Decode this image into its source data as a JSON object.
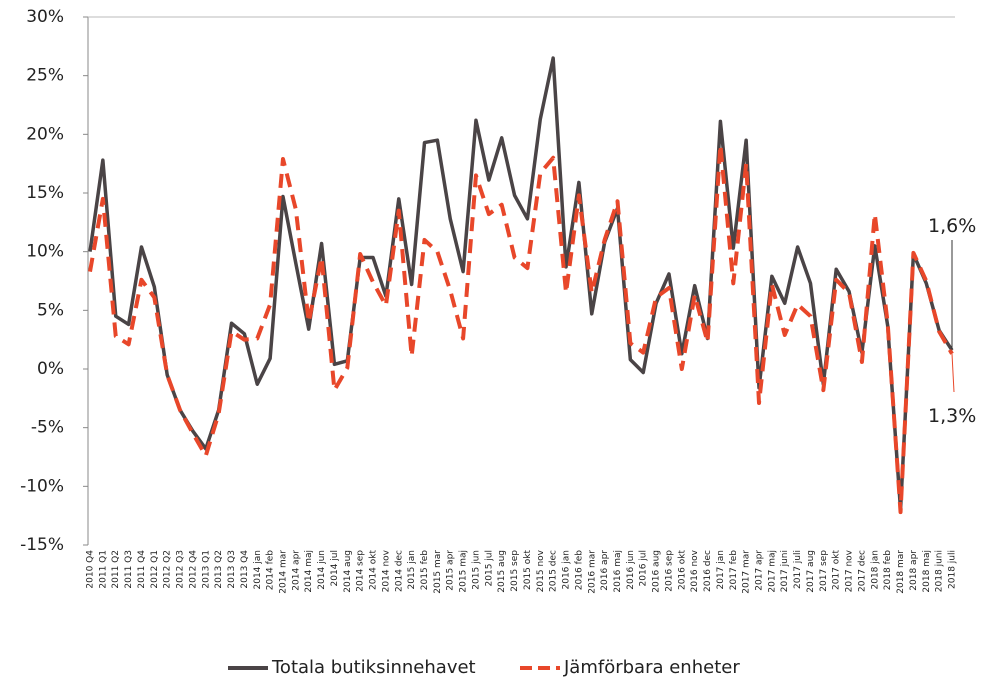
{
  "chart_data": {
    "type": "line",
    "categories": [
      "2010 Q4",
      "2011 Q1",
      "2011 Q2",
      "2011 Q3",
      "2011 Q4",
      "2012 Q1",
      "2012 Q2",
      "2012 Q3",
      "2012 Q4",
      "2013 Q1",
      "2013 Q2",
      "2013 Q3",
      "2013 Q4",
      "2014 jan",
      "2014 feb",
      "2014 mar",
      "2014 apr",
      "2014 maj",
      "2014 jun",
      "2014 jul",
      "2014 aug",
      "2014 sep",
      "2014 okt",
      "2014 nov",
      "2014 dec",
      "2015 jan",
      "2015 feb",
      "2015 mar",
      "2015 apr",
      "2015 maj",
      "2015 jun",
      "2015 jul",
      "2015 aug",
      "2015 sep",
      "2015 okt",
      "2015 nov",
      "2015 dec",
      "2016 jan",
      "2016 feb",
      "2016 mar",
      "2016 apr",
      "2016 maj",
      "2016 jun",
      "2016 jul",
      "2016 aug",
      "2016 sep",
      "2016 okt",
      "2016 nov",
      "2016 dec",
      "2017 jan",
      "2017 feb",
      "2017 mar",
      "2017 apr",
      "2017 maj",
      "2017 juni",
      "2017 juli",
      "2017 aug",
      "2017 sep",
      "2017 okt",
      "2017 nov",
      "2017 dec",
      "2018 jan",
      "2018 feb",
      "2018 mar",
      "2018 apr",
      "2018 maj",
      "2018 juni",
      "2018 juli"
    ],
    "series": [
      {
        "name": "Totala butiksinnehavet",
        "color": "#4a4446",
        "dashed": false,
        "values": [
          10,
          17.8,
          4.5,
          3.8,
          10.4,
          7,
          -0.5,
          -3.5,
          -5.3,
          -6.8,
          -3.5,
          3.9,
          3,
          -1.3,
          0.9,
          14.7,
          9,
          3.4,
          10.7,
          0.4,
          0.7,
          9.5,
          9.5,
          6.2,
          14.5,
          7.2,
          19.3,
          19.5,
          12.8,
          8.3,
          21.2,
          16.1,
          19.7,
          14.8,
          12.8,
          21.3,
          26.5,
          8.7,
          15.9,
          4.7,
          10.8,
          13.7,
          0.8,
          -0.3,
          5.6,
          8.1,
          1.3,
          7.1,
          2.6,
          21.1,
          10.3,
          19.5,
          -1.6,
          7.9,
          5.6,
          10.4,
          7.3,
          -1.3,
          8.5,
          6.6,
          1.4,
          10.5,
          3.7,
          -12,
          9.8,
          7.3,
          3.3,
          1.6
        ]
      },
      {
        "name": "Jämförbara enheter",
        "color": "#e8472a",
        "dashed": true,
        "values": [
          8.3,
          14.5,
          2.8,
          2.1,
          7.6,
          6.1,
          -0.5,
          -3.5,
          -5.5,
          -7.4,
          -3.8,
          3.2,
          2.5,
          2.6,
          5.5,
          17.9,
          13.6,
          4,
          9.5,
          -1.8,
          0.1,
          9.8,
          7.4,
          5.4,
          13.5,
          1.1,
          11,
          10,
          6.7,
          2.6,
          16.5,
          13.2,
          14,
          9.5,
          8.6,
          16.7,
          18,
          6.5,
          14.8,
          6.5,
          11,
          14.3,
          2.2,
          1.4,
          6.1,
          6.9,
          0,
          6.3,
          2.3,
          19.1,
          7.3,
          17.5,
          -2.9,
          7.2,
          2.9,
          5.5,
          4.5,
          -1.8,
          7.6,
          6.5,
          0.6,
          13.2,
          3.9,
          -12.2,
          9.9,
          7.5,
          3.2,
          1.3
        ]
      }
    ],
    "ylim": [
      -15,
      30
    ],
    "yticks": [
      {
        "value": -15,
        "label": "-15%"
      },
      {
        "value": -10,
        "label": "-10%"
      },
      {
        "value": -5,
        "label": "-5%"
      },
      {
        "value": 0,
        "label": "0%"
      },
      {
        "value": 5,
        "label": "5%"
      },
      {
        "value": 10,
        "label": "10%"
      },
      {
        "value": 15,
        "label": "15%"
      },
      {
        "value": 20,
        "label": "20%"
      },
      {
        "value": 25,
        "label": "25%"
      },
      {
        "value": 30,
        "label": "30%"
      }
    ],
    "annotations": [
      "1,6%",
      "1,3%"
    ],
    "legend": "bottom"
  }
}
